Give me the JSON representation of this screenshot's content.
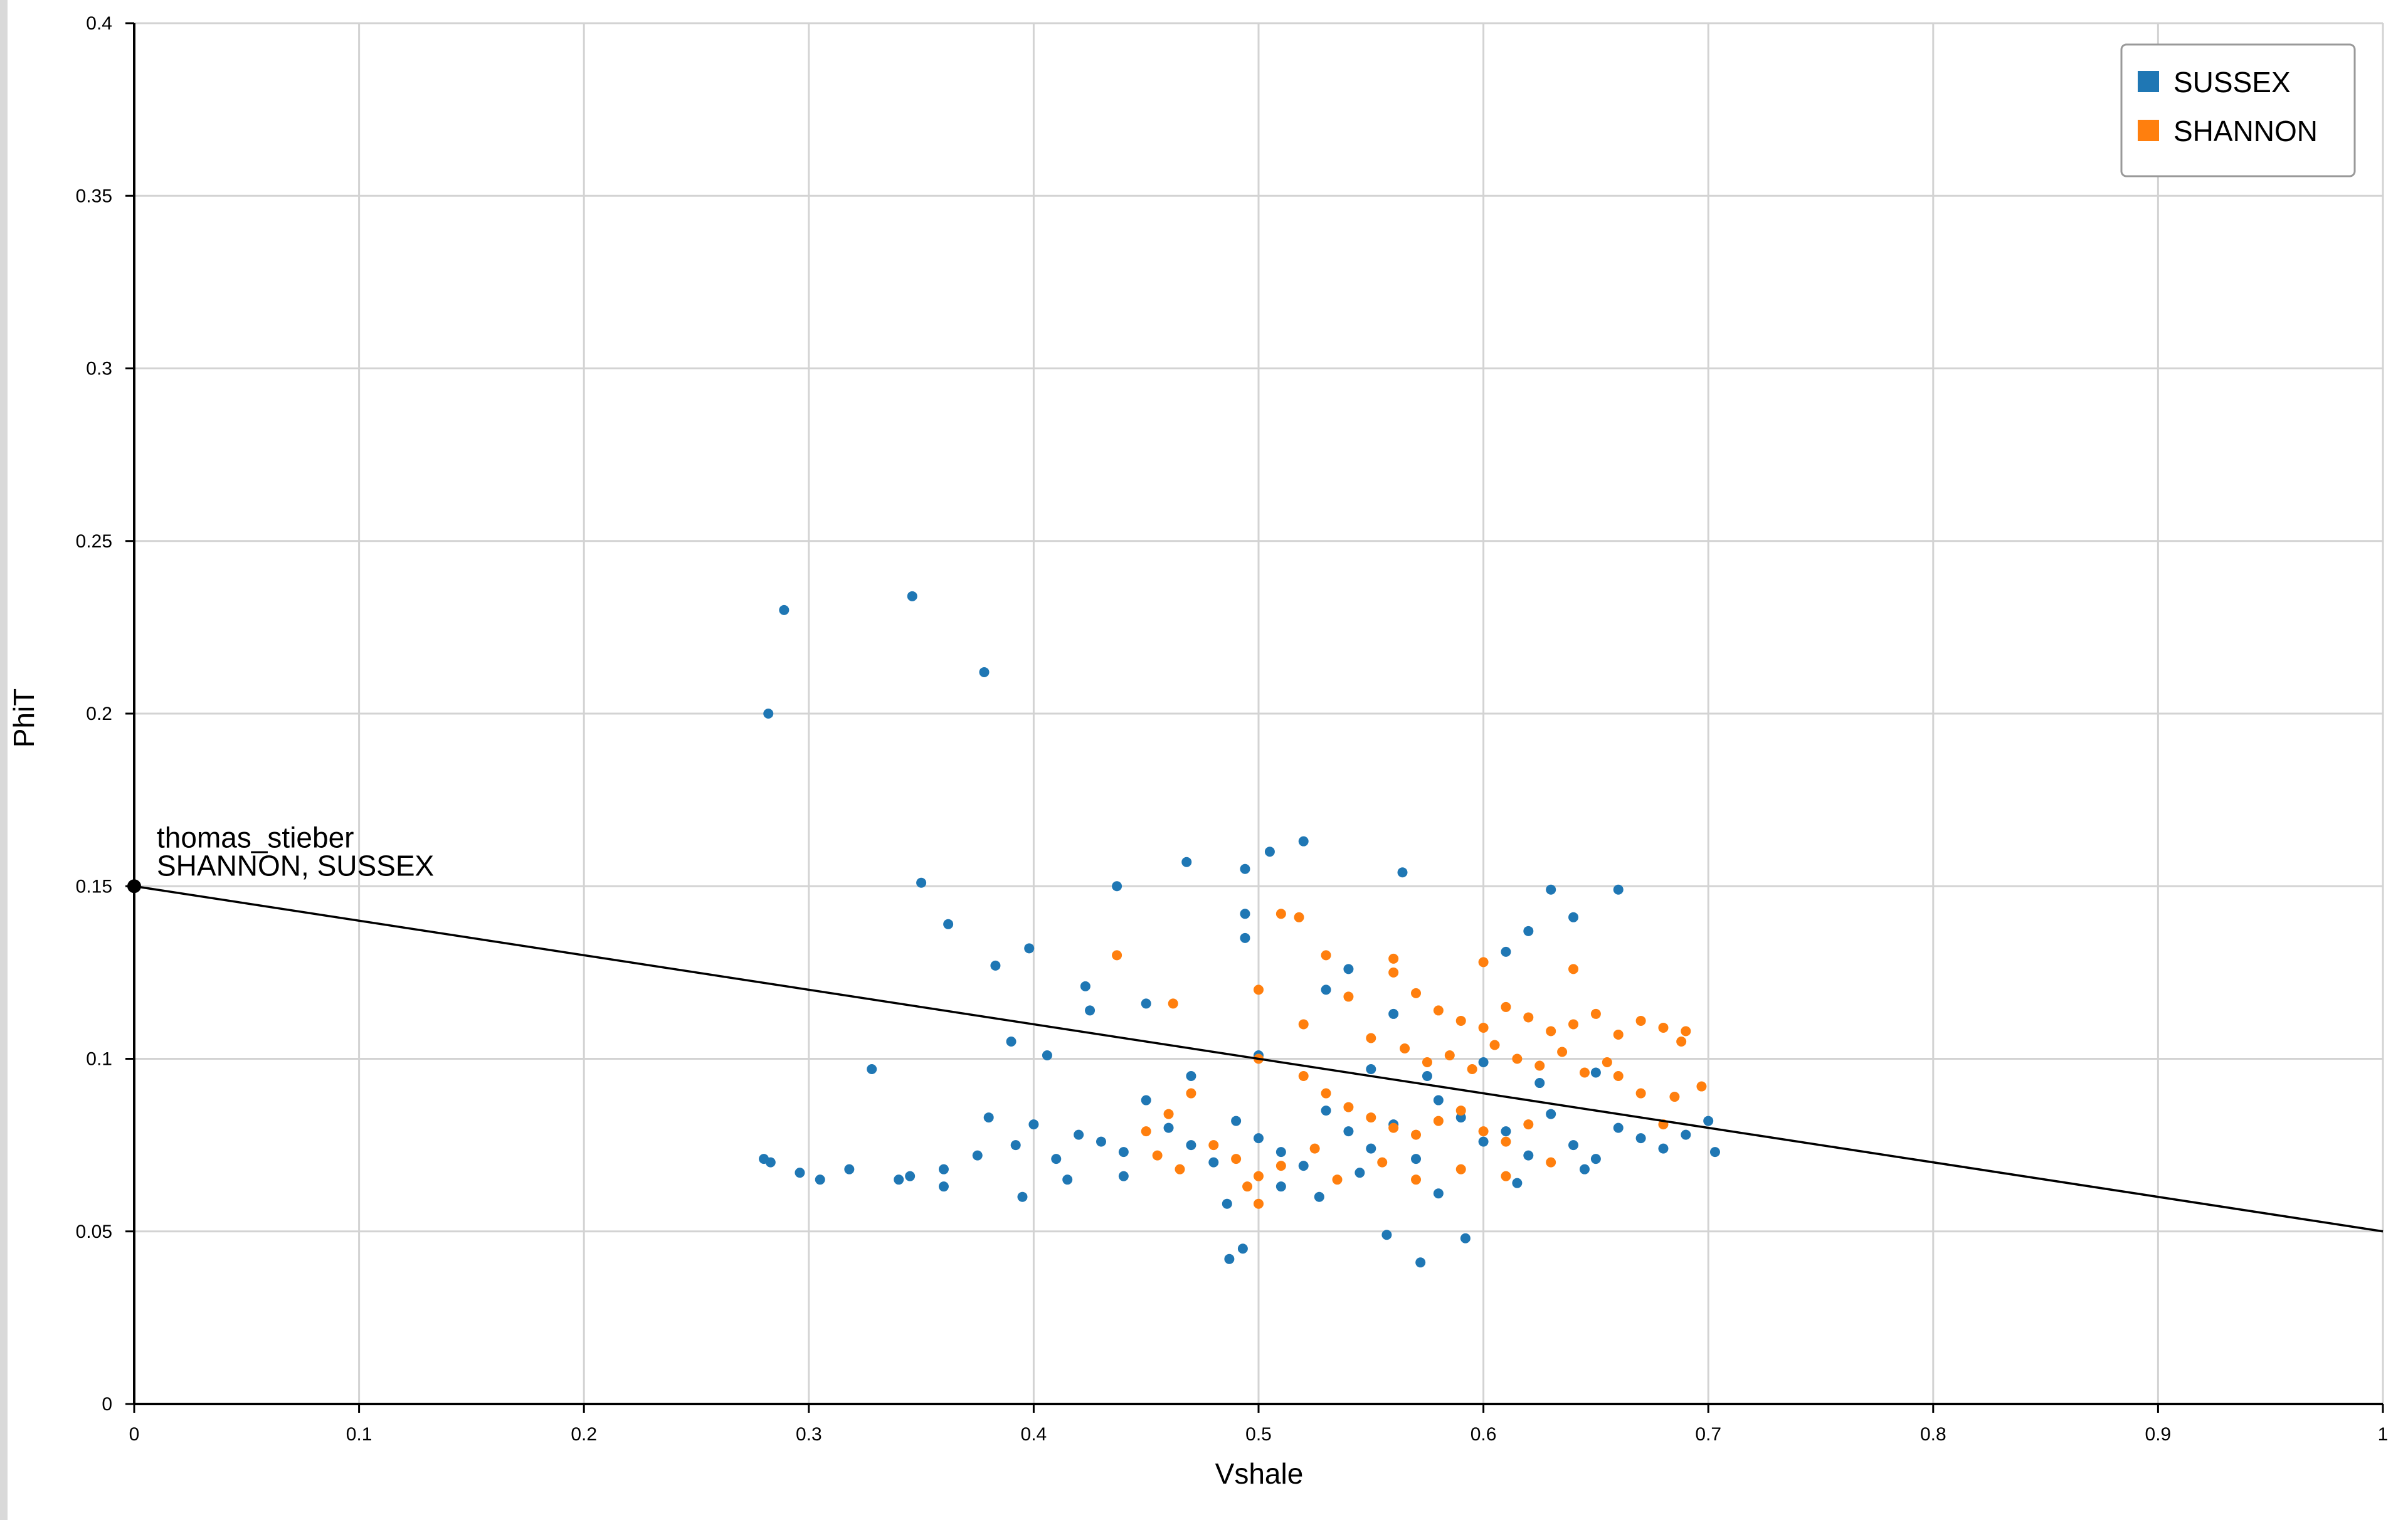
{
  "colors": {
    "sussex": "#1f77b4",
    "shannon": "#ff7f0e",
    "grid": "#d3d3d3",
    "axis": "#000000",
    "line": "#000000"
  },
  "chart_data": {
    "type": "scatter",
    "title": "",
    "xlabel": "Vshale",
    "ylabel": "PhiT",
    "xlim": [
      0,
      1
    ],
    "ylim": [
      0,
      0.4
    ],
    "x_ticks": [
      "0",
      "0.1",
      "0.2",
      "0.3",
      "0.4",
      "0.5",
      "0.6",
      "0.7",
      "0.8",
      "0.9",
      "1"
    ],
    "y_ticks": [
      "0",
      "0.05",
      "0.1",
      "0.15",
      "0.2",
      "0.25",
      "0.3",
      "0.35",
      "0.4"
    ],
    "grid": true,
    "legend_position": "top-right",
    "legend": [
      {
        "label": "SUSSEX",
        "color": "#1f77b4"
      },
      {
        "label": "SHANNON",
        "color": "#ff7f0e"
      }
    ],
    "series": [
      {
        "name": "SUSSEX",
        "color": "#1f77b4",
        "points": [
          [
            0.282,
            0.2
          ],
          [
            0.289,
            0.23
          ],
          [
            0.346,
            0.234
          ],
          [
            0.378,
            0.212
          ],
          [
            0.35,
            0.151
          ],
          [
            0.362,
            0.139
          ],
          [
            0.383,
            0.127
          ],
          [
            0.398,
            0.132
          ],
          [
            0.328,
            0.097
          ],
          [
            0.39,
            0.105
          ],
          [
            0.406,
            0.101
          ],
          [
            0.437,
            0.15
          ],
          [
            0.468,
            0.157
          ],
          [
            0.505,
            0.16
          ],
          [
            0.52,
            0.163
          ],
          [
            0.564,
            0.154
          ],
          [
            0.63,
            0.149
          ],
          [
            0.66,
            0.149
          ],
          [
            0.494,
            0.155
          ],
          [
            0.494,
            0.142
          ],
          [
            0.64,
            0.141
          ],
          [
            0.494,
            0.135
          ],
          [
            0.423,
            0.121
          ],
          [
            0.425,
            0.114
          ],
          [
            0.45,
            0.116
          ],
          [
            0.28,
            0.071
          ],
          [
            0.283,
            0.07
          ],
          [
            0.296,
            0.067
          ],
          [
            0.305,
            0.065
          ],
          [
            0.318,
            0.068
          ],
          [
            0.34,
            0.065
          ],
          [
            0.345,
            0.066
          ],
          [
            0.36,
            0.068
          ],
          [
            0.375,
            0.072
          ],
          [
            0.392,
            0.075
          ],
          [
            0.41,
            0.071
          ],
          [
            0.42,
            0.078
          ],
          [
            0.43,
            0.076
          ],
          [
            0.44,
            0.073
          ],
          [
            0.46,
            0.08
          ],
          [
            0.47,
            0.075
          ],
          [
            0.48,
            0.07
          ],
          [
            0.49,
            0.082
          ],
          [
            0.5,
            0.077
          ],
          [
            0.51,
            0.073
          ],
          [
            0.52,
            0.069
          ],
          [
            0.53,
            0.085
          ],
          [
            0.54,
            0.079
          ],
          [
            0.55,
            0.074
          ],
          [
            0.56,
            0.081
          ],
          [
            0.57,
            0.071
          ],
          [
            0.58,
            0.088
          ],
          [
            0.59,
            0.083
          ],
          [
            0.6,
            0.076
          ],
          [
            0.61,
            0.079
          ],
          [
            0.62,
            0.072
          ],
          [
            0.63,
            0.084
          ],
          [
            0.64,
            0.075
          ],
          [
            0.65,
            0.071
          ],
          [
            0.66,
            0.08
          ],
          [
            0.67,
            0.077
          ],
          [
            0.68,
            0.074
          ],
          [
            0.69,
            0.078
          ],
          [
            0.7,
            0.082
          ],
          [
            0.703,
            0.073
          ],
          [
            0.487,
            0.042
          ],
          [
            0.493,
            0.045
          ],
          [
            0.572,
            0.041
          ],
          [
            0.592,
            0.048
          ],
          [
            0.557,
            0.049
          ],
          [
            0.486,
            0.058
          ],
          [
            0.527,
            0.06
          ],
          [
            0.55,
            0.097
          ],
          [
            0.575,
            0.095
          ],
          [
            0.6,
            0.099
          ],
          [
            0.625,
            0.093
          ],
          [
            0.65,
            0.096
          ],
          [
            0.53,
            0.12
          ],
          [
            0.56,
            0.113
          ],
          [
            0.61,
            0.131
          ],
          [
            0.62,
            0.137
          ],
          [
            0.54,
            0.126
          ],
          [
            0.5,
            0.101
          ],
          [
            0.47,
            0.095
          ],
          [
            0.45,
            0.088
          ],
          [
            0.4,
            0.081
          ],
          [
            0.38,
            0.083
          ],
          [
            0.36,
            0.063
          ],
          [
            0.415,
            0.065
          ],
          [
            0.395,
            0.06
          ],
          [
            0.44,
            0.066
          ],
          [
            0.51,
            0.063
          ],
          [
            0.545,
            0.067
          ],
          [
            0.58,
            0.061
          ],
          [
            0.615,
            0.064
          ],
          [
            0.645,
            0.068
          ]
        ]
      },
      {
        "name": "SHANNON",
        "color": "#ff7f0e",
        "points": [
          [
            0.437,
            0.13
          ],
          [
            0.462,
            0.116
          ],
          [
            0.51,
            0.142
          ],
          [
            0.518,
            0.141
          ],
          [
            0.5,
            0.12
          ],
          [
            0.54,
            0.118
          ],
          [
            0.56,
            0.125
          ],
          [
            0.57,
            0.119
          ],
          [
            0.58,
            0.114
          ],
          [
            0.59,
            0.111
          ],
          [
            0.6,
            0.109
          ],
          [
            0.61,
            0.115
          ],
          [
            0.62,
            0.112
          ],
          [
            0.63,
            0.108
          ],
          [
            0.64,
            0.11
          ],
          [
            0.65,
            0.113
          ],
          [
            0.66,
            0.107
          ],
          [
            0.67,
            0.111
          ],
          [
            0.68,
            0.109
          ],
          [
            0.69,
            0.108
          ],
          [
            0.688,
            0.105
          ],
          [
            0.697,
            0.092
          ],
          [
            0.55,
            0.106
          ],
          [
            0.565,
            0.103
          ],
          [
            0.575,
            0.099
          ],
          [
            0.585,
            0.101
          ],
          [
            0.595,
            0.097
          ],
          [
            0.605,
            0.104
          ],
          [
            0.615,
            0.1
          ],
          [
            0.625,
            0.098
          ],
          [
            0.635,
            0.102
          ],
          [
            0.645,
            0.096
          ],
          [
            0.655,
            0.099
          ],
          [
            0.52,
            0.095
          ],
          [
            0.53,
            0.09
          ],
          [
            0.54,
            0.086
          ],
          [
            0.55,
            0.083
          ],
          [
            0.56,
            0.08
          ],
          [
            0.57,
            0.078
          ],
          [
            0.58,
            0.082
          ],
          [
            0.59,
            0.085
          ],
          [
            0.6,
            0.079
          ],
          [
            0.61,
            0.076
          ],
          [
            0.62,
            0.081
          ],
          [
            0.47,
            0.09
          ],
          [
            0.46,
            0.084
          ],
          [
            0.45,
            0.079
          ],
          [
            0.455,
            0.072
          ],
          [
            0.465,
            0.068
          ],
          [
            0.48,
            0.075
          ],
          [
            0.49,
            0.071
          ],
          [
            0.5,
            0.066
          ],
          [
            0.51,
            0.069
          ],
          [
            0.525,
            0.074
          ],
          [
            0.535,
            0.065
          ],
          [
            0.555,
            0.07
          ],
          [
            0.57,
            0.065
          ],
          [
            0.59,
            0.068
          ],
          [
            0.61,
            0.066
          ],
          [
            0.63,
            0.07
          ],
          [
            0.5,
            0.058
          ],
          [
            0.495,
            0.063
          ],
          [
            0.68,
            0.081
          ],
          [
            0.67,
            0.09
          ],
          [
            0.66,
            0.095
          ],
          [
            0.685,
            0.089
          ],
          [
            0.52,
            0.11
          ],
          [
            0.53,
            0.13
          ],
          [
            0.56,
            0.129
          ],
          [
            0.6,
            0.128
          ],
          [
            0.64,
            0.126
          ],
          [
            0.5,
            0.1
          ]
        ]
      }
    ],
    "reference_line": {
      "x": [
        0,
        1
      ],
      "y": [
        0.15,
        0.05
      ],
      "annotation": [
        "thomas_stieber",
        "SHANNON, SUSSEX"
      ]
    }
  }
}
